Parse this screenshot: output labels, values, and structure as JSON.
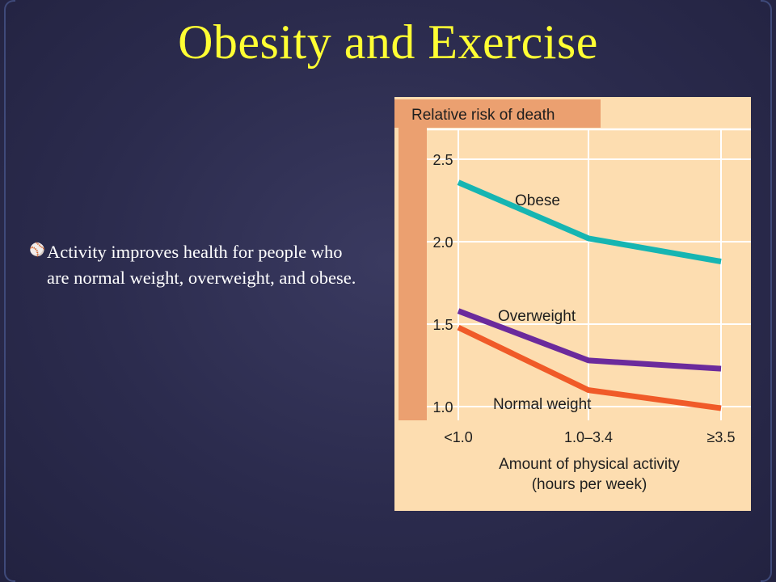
{
  "slide": {
    "title": "Obesity and Exercise",
    "bullet": "Activity improves health for people who are normal weight, overweight, and obese."
  },
  "colors": {
    "title": "#ffff33",
    "background": "#2e2e52",
    "chart_bg": "#fdddb0",
    "axis_band": "#eba070"
  },
  "chart_data": {
    "type": "line",
    "title": "",
    "ylabel": "Relative risk of death",
    "xlabel": [
      "Amount of physical activity",
      "(hours per week)"
    ],
    "categories": [
      "<1.0",
      "1.0–3.4",
      "≥3.5"
    ],
    "y_ticks": [
      "2.5",
      "2.0",
      "1.5",
      "1.0"
    ],
    "ylim": [
      1.0,
      2.5
    ],
    "grid": true,
    "series": [
      {
        "name": "Obese",
        "values": [
          2.36,
          2.02,
          1.88
        ],
        "color": "#16b5b2"
      },
      {
        "name": "Overweight",
        "values": [
          1.58,
          1.28,
          1.23
        ],
        "color": "#6b2a9c"
      },
      {
        "name": "Normal weight",
        "values": [
          1.48,
          1.1,
          0.99
        ],
        "color": "#f05a28"
      }
    ]
  }
}
